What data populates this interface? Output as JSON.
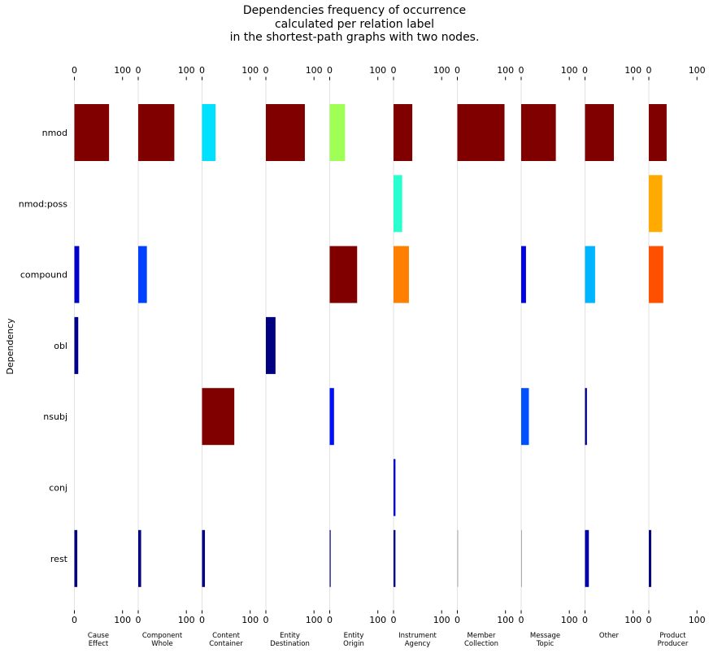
{
  "chart_data": {
    "type": "bar",
    "orientation": "horizontal",
    "title_lines": [
      "Dependencies frequency of occurrence",
      "calculated per relation label",
      "in the shortest-path graphs with two nodes."
    ],
    "ylabel": "Dependency",
    "xlim": [
      0,
      100
    ],
    "x_ticks": [
      "0",
      "100"
    ],
    "categories": [
      "nmod",
      "nmod:poss",
      "compound",
      "obl",
      "nsubj",
      "conj",
      "rest"
    ],
    "series": [
      {
        "name_lines": [
          "Cause",
          "Effect"
        ],
        "values": [
          72,
          0,
          10,
          8,
          0,
          0,
          6
        ],
        "colors": [
          "#800000",
          null,
          "#0000cc",
          "#00008b",
          null,
          null,
          "#000080"
        ]
      },
      {
        "name_lines": [
          "Component",
          "Whole"
        ],
        "values": [
          75,
          0,
          18,
          0,
          0,
          0,
          6
        ],
        "colors": [
          "#800000",
          null,
          "#0040ff",
          null,
          null,
          null,
          "#000080"
        ]
      },
      {
        "name_lines": [
          "Content",
          "Container"
        ],
        "values": [
          28,
          0,
          0,
          0,
          67,
          0,
          6
        ],
        "colors": [
          "#00e0ff",
          null,
          null,
          null,
          "#800000",
          null,
          "#000080"
        ]
      },
      {
        "name_lines": [
          "Entity",
          "Destination"
        ],
        "values": [
          81,
          0,
          0,
          20,
          0,
          0,
          0
        ],
        "colors": [
          "#800000",
          null,
          null,
          "#000080",
          null,
          null,
          null
        ]
      },
      {
        "name_lines": [
          "Entity",
          "Origin"
        ],
        "values": [
          32,
          0,
          57,
          0,
          9,
          0,
          2
        ],
        "colors": [
          "#a0ff56",
          null,
          "#800000",
          null,
          "#0010ff",
          null,
          "#000080"
        ]
      },
      {
        "name_lines": [
          "Instrument",
          "Agency"
        ],
        "values": [
          39,
          18,
          32,
          0,
          0,
          4,
          4
        ],
        "colors": [
          "#800000",
          "#29ffce",
          "#ff8000",
          null,
          null,
          "#0000c8",
          "#000080"
        ]
      },
      {
        "name_lines": [
          "Member",
          "Collection"
        ],
        "values": [
          98,
          0,
          0,
          0,
          0,
          0,
          0.5
        ],
        "colors": [
          "#800000",
          null,
          null,
          null,
          null,
          null,
          "#aaaaaa"
        ]
      },
      {
        "name_lines": [
          "Message",
          "Topic"
        ],
        "values": [
          72,
          0,
          10,
          0,
          16,
          0,
          0.5
        ],
        "colors": [
          "#800000",
          null,
          "#0000e8",
          null,
          "#0050ff",
          null,
          "#aaaaaa"
        ]
      },
      {
        "name_lines": [
          "Other"
        ],
        "values": [
          60,
          0,
          21,
          0,
          4,
          0,
          8
        ],
        "colors": [
          "#800000",
          null,
          "#00b4ff",
          null,
          "#000090",
          null,
          "#0000a8"
        ]
      },
      {
        "name_lines": [
          "Product",
          "Producer"
        ],
        "values": [
          37,
          28,
          30,
          0,
          0,
          0,
          5
        ],
        "colors": [
          "#800000",
          "#ffaa00",
          "#ff5000",
          null,
          null,
          null,
          "#000080"
        ]
      }
    ]
  }
}
